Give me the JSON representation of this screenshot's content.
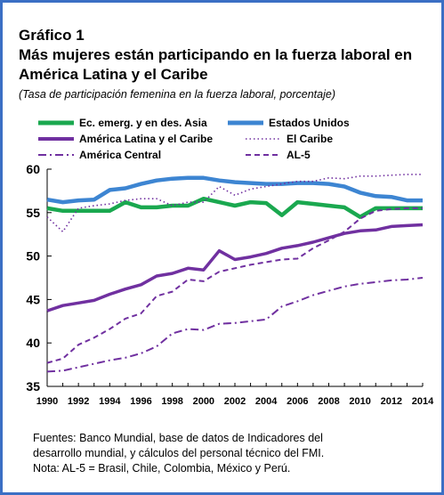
{
  "figure": {
    "number": "Gráfico 1",
    "title_line1": "Más mujeres están participando en la fuerza laboral en",
    "title_line2": "América Latina y el Caribe",
    "subtitle": "(Tasa de participación femenina en la fuerza laboral, porcentaje)"
  },
  "notes": {
    "line1": "Fuentes: Banco Mundial, base de datos de Indicadores del",
    "line2": "desarrollo mundial, y cálculos del personal técnico del FMI.",
    "line3": "Nota: AL-5 = Brasil, Chile, Colombia, México y Perú."
  },
  "colors": {
    "asia": "#1aa84f",
    "usa": "#3d85d2",
    "latam": "#7030a0",
    "caribe": "#7030a0",
    "central": "#7030a0",
    "al5": "#7030a0",
    "frame": "#3b6fc4"
  },
  "chart_data": {
    "type": "line",
    "title": "Más mujeres están participando en la fuerza laboral en América Latina y el Caribe",
    "xlabel": "",
    "ylabel": "",
    "ylim": [
      35,
      60
    ],
    "yticks": [
      "35",
      "40",
      "45",
      "50",
      "55",
      "60"
    ],
    "xticks": [
      "1990",
      "1992",
      "1994",
      "1996",
      "1998",
      "2000",
      "2002",
      "2004",
      "2006",
      "2008",
      "2010",
      "2012",
      "2014"
    ],
    "x": [
      1990,
      1991,
      1992,
      1993,
      1994,
      1995,
      1996,
      1997,
      1998,
      1999,
      2000,
      2001,
      2002,
      2003,
      2004,
      2005,
      2006,
      2007,
      2008,
      2009,
      2010,
      2011,
      2012,
      2013,
      2014
    ],
    "grid": false,
    "legend_position": "top",
    "series": [
      {
        "name": "Ec. emerg. y en des. Asia",
        "key": "asia",
        "style": "solid-thick",
        "values": [
          55.5,
          55.2,
          55.2,
          55.2,
          55.2,
          56.2,
          55.6,
          55.6,
          55.8,
          55.8,
          56.6,
          56.2,
          55.8,
          56.2,
          56.1,
          54.7,
          56.2,
          56.0,
          55.8,
          55.6,
          54.5,
          55.5,
          55.5,
          55.5,
          55.5
        ]
      },
      {
        "name": "Estados Unidos",
        "key": "usa",
        "style": "solid-thick",
        "values": [
          56.5,
          56.2,
          56.4,
          56.5,
          57.6,
          57.8,
          58.3,
          58.7,
          58.9,
          59.0,
          59.0,
          58.7,
          58.5,
          58.4,
          58.3,
          58.3,
          58.4,
          58.4,
          58.3,
          58.0,
          57.3,
          56.9,
          56.8,
          56.4,
          56.4
        ]
      },
      {
        "name": "América Latina y el Caribe",
        "key": "latam",
        "style": "solid",
        "values": [
          43.7,
          44.3,
          44.6,
          44.9,
          45.6,
          46.2,
          46.7,
          47.7,
          48.0,
          48.6,
          48.4,
          50.6,
          49.6,
          49.9,
          50.3,
          50.9,
          51.2,
          51.6,
          52.1,
          52.6,
          52.9,
          53.0,
          53.4,
          53.5,
          53.6
        ]
      },
      {
        "name": "El Caribe",
        "key": "caribe",
        "style": "dotted",
        "values": [
          54.5,
          52.8,
          55.5,
          55.8,
          56.0,
          56.4,
          56.6,
          56.6,
          55.8,
          56.2,
          56.2,
          58.0,
          57.0,
          57.7,
          58.0,
          58.3,
          58.6,
          58.6,
          59.0,
          58.9,
          59.2,
          59.2,
          59.3,
          59.4,
          59.4
        ]
      },
      {
        "name": "América Central",
        "key": "central",
        "style": "dashdot",
        "values": [
          36.7,
          36.8,
          37.2,
          37.6,
          38.0,
          38.3,
          38.8,
          39.6,
          41.1,
          41.6,
          41.5,
          42.2,
          42.3,
          42.5,
          42.7,
          44.2,
          44.8,
          45.5,
          46.0,
          46.5,
          46.8,
          47.0,
          47.2,
          47.3,
          47.5
        ]
      },
      {
        "name": "AL-5",
        "key": "al5",
        "style": "dashed",
        "values": [
          37.7,
          38.2,
          39.8,
          40.6,
          41.6,
          42.8,
          43.4,
          45.4,
          45.9,
          47.3,
          47.1,
          48.2,
          48.6,
          49.0,
          49.3,
          49.6,
          49.7,
          50.9,
          51.8,
          52.8,
          54.3,
          55.2,
          55.4,
          55.5,
          55.5
        ]
      }
    ]
  }
}
